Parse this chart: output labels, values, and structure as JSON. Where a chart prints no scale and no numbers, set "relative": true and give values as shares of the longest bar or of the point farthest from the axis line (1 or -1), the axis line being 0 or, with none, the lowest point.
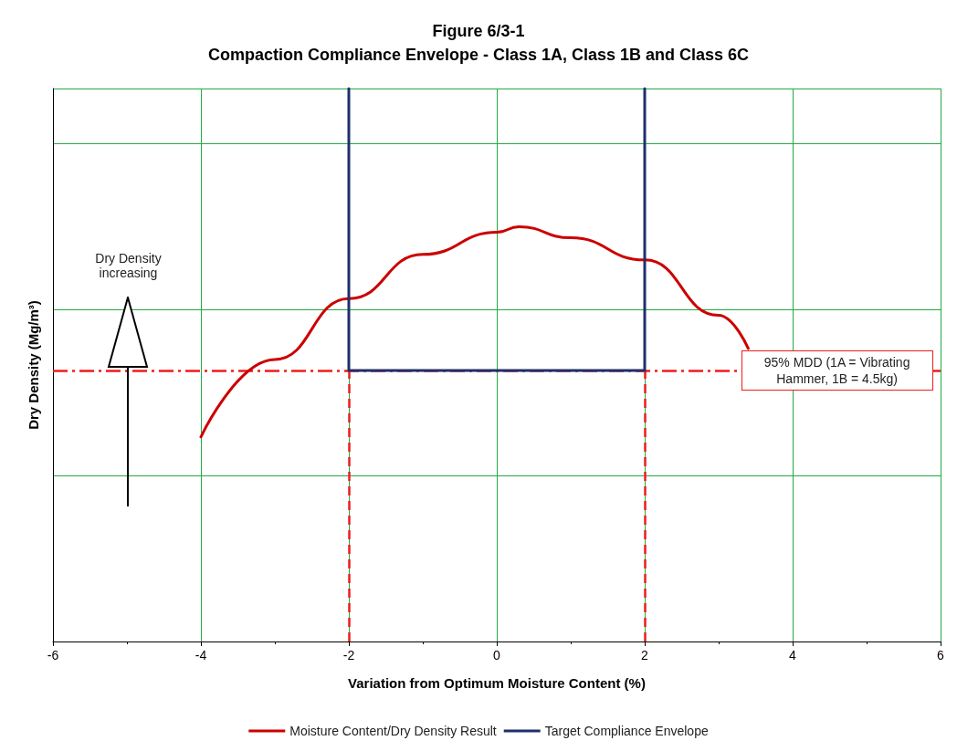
{
  "chart_data": {
    "type": "line",
    "title": "Figure 6/3-1",
    "subtitle": "Compaction Compliance Envelope - Class 1A, Class 1B and Class 6C",
    "xlabel": "Variation from Optimum Moisture Content (%)",
    "ylabel": "Dry Density (Mg/m³)",
    "relative": true,
    "xlim": [
      -6,
      6
    ],
    "xticks": [
      -6,
      -4,
      -2,
      0,
      2,
      4,
      6
    ],
    "tick_labels": "x",
    "grid": true,
    "legend": "bottom",
    "marker": "none",
    "series": [
      {
        "name": "Moisture Content/Dry Density Result",
        "color": "#cc0000",
        "x": [
          -4,
          -3,
          -2,
          -1,
          0,
          0.3,
          1,
          2,
          3,
          3.4
        ],
        "values": [
          0.37,
          0.51,
          0.62,
          0.7,
          0.74,
          0.75,
          0.73,
          0.69,
          0.59,
          0.53
        ]
      },
      {
        "name": "Target Compliance Envelope",
        "color": "#1f2f6b",
        "x": [
          -2,
          -2,
          2,
          2
        ],
        "values": [
          1,
          0.49,
          0.49,
          1
        ]
      }
    ],
    "ref_lines": [
      {
        "axis": "y",
        "value": 0.49,
        "label": null,
        "color": "#ee1c1c",
        "line_style": "dashdot"
      },
      {
        "axis": "x",
        "value": -2,
        "label": null,
        "color": "#ee1c1c",
        "line_style": "dashed"
      },
      {
        "axis": "x",
        "value": 2,
        "label": null,
        "color": "#ee1c1c",
        "line_style": "dashed"
      }
    ],
    "annotations": [
      "Dry Density increasing",
      {
        "text": "95% MDD (1A = Vibrating Hammer, 1B = 4.5kg)",
        "x": 4.6,
        "y": 0.49
      }
    ]
  }
}
